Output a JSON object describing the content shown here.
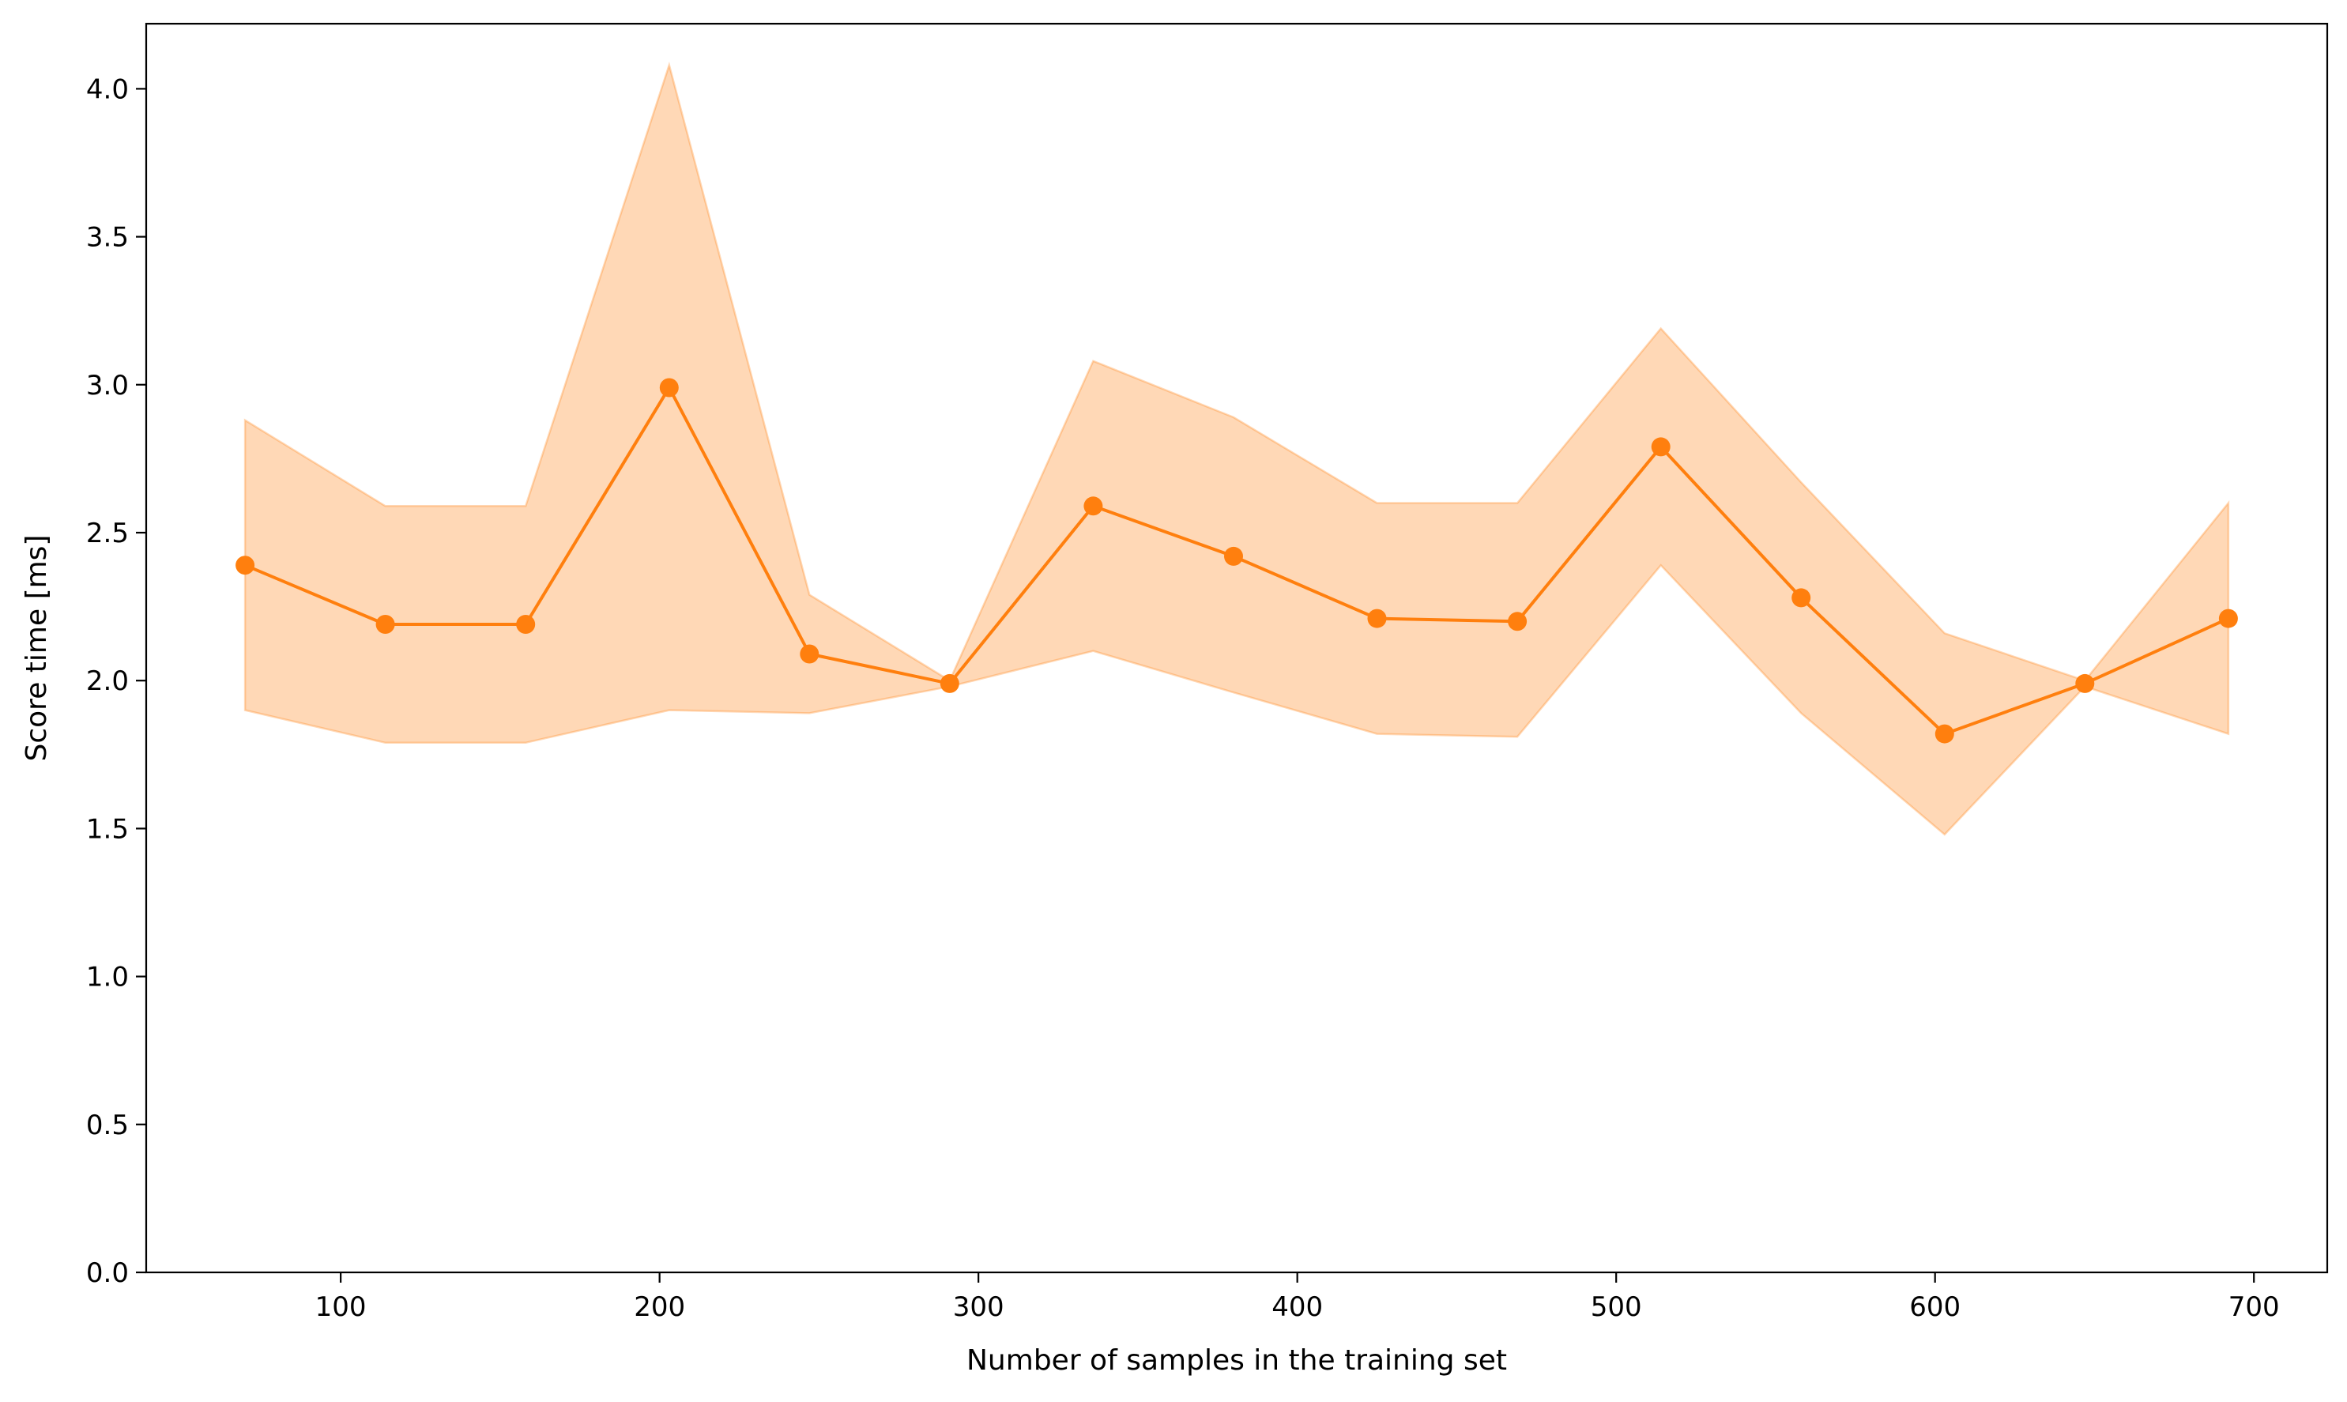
{
  "chart_data": {
    "type": "line",
    "title": "",
    "xlabel": "Number of samples in the training set",
    "ylabel": "Score time [ms]",
    "xlim": [
      39,
      723
    ],
    "ylim": [
      0.0,
      4.22
    ],
    "xticks": [
      100,
      200,
      300,
      400,
      500,
      600,
      700
    ],
    "yticks": [
      0.0,
      0.5,
      1.0,
      1.5,
      2.0,
      2.5,
      3.0,
      3.5,
      4.0
    ],
    "xtick_labels": [
      "100",
      "200",
      "300",
      "400",
      "500",
      "600",
      "700"
    ],
    "ytick_labels": [
      "0.0",
      "0.5",
      "1.0",
      "1.5",
      "2.0",
      "2.5",
      "3.0",
      "3.5",
      "4.0"
    ],
    "grid": false,
    "legend": "none",
    "colors": {
      "line": "#ff7f0e",
      "band": "#ff7f0e",
      "axes": "#000000"
    },
    "band_opacity": 0.3,
    "series": [
      {
        "x": [
          70,
          114,
          158,
          203,
          247,
          291,
          336,
          380,
          425,
          469,
          514,
          558,
          603,
          647,
          692
        ],
        "mean": [
          2.39,
          2.19,
          2.19,
          2.99,
          2.09,
          1.99,
          2.59,
          2.42,
          2.21,
          2.2,
          2.79,
          2.28,
          1.82,
          1.99,
          2.21
        ],
        "upper": [
          2.88,
          2.59,
          2.59,
          4.08,
          2.29,
          2.0,
          3.08,
          2.89,
          2.6,
          2.6,
          3.19,
          2.67,
          2.16,
          2.0,
          2.6
        ],
        "lower": [
          1.9,
          1.79,
          1.79,
          1.9,
          1.89,
          1.98,
          2.1,
          1.96,
          1.82,
          1.81,
          2.39,
          1.89,
          1.48,
          1.98,
          1.82
        ]
      }
    ]
  }
}
